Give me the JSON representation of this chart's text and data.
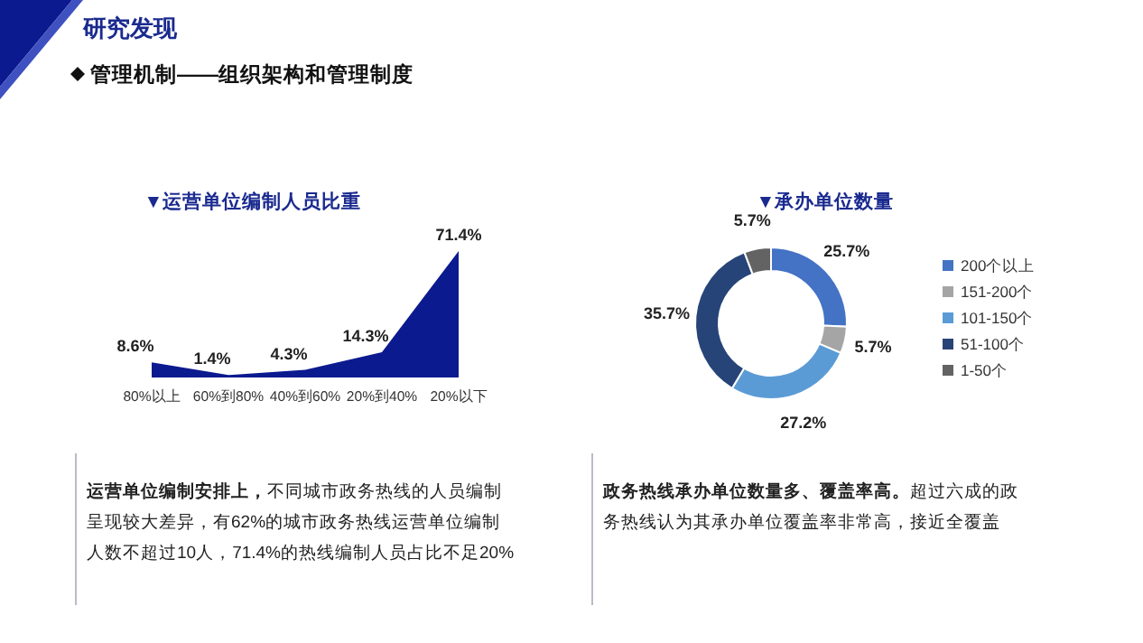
{
  "chart_data": [
    {
      "type": "other",
      "title": "研究发现",
      "subtitle": "管理机制——组织架构和管理制度"
    },
    {
      "type": "area",
      "title": "▼运营单位编制人员比重",
      "categories": [
        "80%以上",
        "60%到80%",
        "40%到60%",
        "20%到40%",
        "20%以下"
      ],
      "series": [
        {
          "color": "#0c1a8f",
          "values": [
            8.6,
            1.4,
            4.3,
            14.3,
            71.4
          ],
          "value_labels": [
            "8.6%",
            "1.4%",
            "4.3%",
            "14.3%",
            "71.4%"
          ]
        }
      ],
      "annotations": [
        "运营单位编制安排上，",
        "不同城市政务热线的人员编制呈现较大差异，有62%的城市政务热线运营单位编制人数不超过10人，71.4%的热线编制人员占比不足20%"
      ]
    },
    {
      "type": "donut",
      "title": "▼承办单位数量",
      "categories": [
        "200个以上",
        "151-200个",
        "101-150个",
        "51-100个",
        "1-50个"
      ],
      "values": [
        25.7,
        5.7,
        27.2,
        35.7,
        5.7
      ],
      "colors": [
        "#4472c4",
        "#a5a5a5",
        "#5b9bd5",
        "#264478",
        "#636363"
      ],
      "value_labels": [
        "25.7%",
        "5.7%",
        "27.2%",
        "35.7%",
        "5.7%"
      ],
      "legend": "right",
      "annotations": [
        "政务热线承办单位数量多、覆盖率高。",
        "超过六成的政务热线认为其承办单位覆盖率非常高，接近全覆盖"
      ]
    }
  ]
}
